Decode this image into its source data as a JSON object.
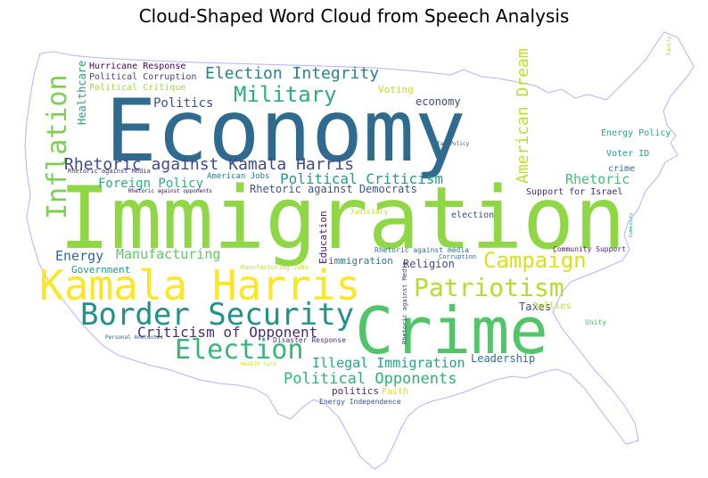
{
  "title": "Cloud-Shaped Word Cloud from Speech Analysis",
  "colors": {
    "outline": "#b3b3ff",
    "background": "#ffffff"
  },
  "words": [
    {
      "text": "Economy",
      "color": "#2f6b8f"
    },
    {
      "text": "Immigration",
      "color": "#8fd744"
    },
    {
      "text": "Crime",
      "color": "#52c569"
    },
    {
      "text": "Kamala Harris",
      "color": "#fde725"
    },
    {
      "text": "Border Security",
      "color": "#21918c"
    },
    {
      "text": "Patriotism",
      "color": "#b5de2b"
    },
    {
      "text": "Election",
      "color": "#35b779"
    },
    {
      "text": "Campaign",
      "color": "#d8e219"
    },
    {
      "text": "Military",
      "color": "#2ab07f"
    },
    {
      "text": "Inflation",
      "color": "#7ad151"
    },
    {
      "text": "Rhetoric against Kamala Harris",
      "color": "#3e4a89"
    },
    {
      "text": "Election Integrity",
      "color": "#26828e"
    },
    {
      "text": "American Dream",
      "color": "#bddf26"
    },
    {
      "text": "Political Criticism",
      "color": "#1f9e89"
    },
    {
      "text": "Political Opponents",
      "color": "#2db27d"
    },
    {
      "text": "Illegal Immigration",
      "color": "#20a486"
    },
    {
      "text": "Criticism of Opponent",
      "color": "#472d7b"
    },
    {
      "text": "Manufacturing",
      "color": "#5ec962"
    },
    {
      "text": "Foreign Policy",
      "color": "#29af7f"
    },
    {
      "text": "Energy",
      "color": "#31688e"
    },
    {
      "text": "Rhetoric",
      "color": "#44bf70"
    },
    {
      "text": "Politics",
      "color": "#3b528b"
    },
    {
      "text": "Healthcare",
      "color": "#1fa187"
    },
    {
      "text": "Rhetoric against Democrats",
      "color": "#39568c"
    },
    {
      "text": "Leadership",
      "color": "#2c728e"
    },
    {
      "text": "Education",
      "color": "#48186a"
    },
    {
      "text": "Taxes",
      "color": "#3b528b"
    },
    {
      "text": "Rallies",
      "color": "#bddf26"
    },
    {
      "text": "Religion",
      "color": "#3e4a89"
    },
    {
      "text": "immigration",
      "color": "#2a788e"
    },
    {
      "text": "economy",
      "color": "#3e4989"
    },
    {
      "text": "Voting",
      "color": "#c0df25"
    },
    {
      "text": "politics",
      "color": "#482878"
    },
    {
      "text": "Faith",
      "color": "#d8e219"
    },
    {
      "text": "Government",
      "color": "#1f9e89"
    },
    {
      "text": "Hurricane Response",
      "color": "#440154"
    },
    {
      "text": "Political Corruption",
      "color": "#414487"
    },
    {
      "text": "Political Critique",
      "color": "#a0da39"
    },
    {
      "text": "Support for Israel",
      "color": "#482878"
    },
    {
      "text": "Energy Policy",
      "color": "#22a884"
    },
    {
      "text": "Voter ID",
      "color": "#1fa187"
    },
    {
      "text": "crime",
      "color": "#31688e"
    },
    {
      "text": "election",
      "color": "#3e4a89"
    },
    {
      "text": "American Jobs",
      "color": "#287d8e"
    },
    {
      "text": "Community Support",
      "color": "#482173"
    },
    {
      "text": "Disaster Response",
      "color": "#46327e"
    },
    {
      "text": "Energy Independence",
      "color": "#3b528b"
    },
    {
      "text": "Judiciary",
      "color": "#c8e020"
    },
    {
      "text": "Rhetoric against media",
      "color": "#2c728e"
    },
    {
      "text": "Corruption",
      "color": "#31688e"
    },
    {
      "text": "Rhetoric against Media",
      "color": "#472d7b"
    },
    {
      "text": "Rhetoric against Media",
      "color": "#443a83"
    },
    {
      "text": "Rhetoric against opponents",
      "color": "#440154"
    },
    {
      "text": "Manufacturing Jobs",
      "color": "#c2df23"
    },
    {
      "text": "Personal Anecdotes",
      "color": "#33638d"
    },
    {
      "text": "Health Care",
      "color": "#d5e21a"
    },
    {
      "text": "Tax Policy",
      "color": "#3b528b"
    },
    {
      "text": "Unity",
      "color": "#4ac16d"
    },
    {
      "text": "Family",
      "color": "#a5db36"
    },
    {
      "text": "Community",
      "color": "#20a486"
    }
  ]
}
